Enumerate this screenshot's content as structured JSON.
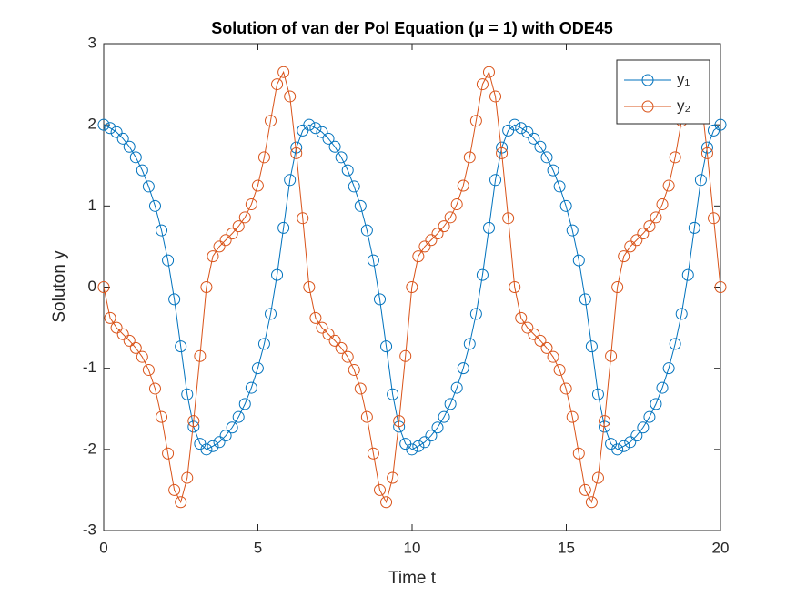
{
  "chart_data": {
    "type": "line",
    "title": "Solution of van der Pol Equation (μ = 1) with ODE45",
    "x_label": "Time t",
    "y_label": "Soluton y",
    "xlim": [
      0,
      20
    ],
    "xticks": [
      0,
      5,
      10,
      15,
      20
    ],
    "ylim": [
      -3,
      3
    ],
    "yticks": [
      -3,
      -2,
      -1,
      0,
      1,
      2,
      3
    ],
    "legend": "northeast",
    "x": [
      0,
      0.208,
      0.416,
      0.625,
      0.833,
      1.041,
      1.249,
      1.457,
      1.666,
      1.874,
      2.082,
      2.29,
      2.498,
      2.707,
      2.915,
      3.123,
      3.331,
      3.539,
      3.748,
      3.956,
      4.164,
      4.372,
      4.58,
      4.789,
      4.997,
      5.205,
      5.413,
      5.621,
      5.83,
      6.038,
      6.246,
      6.454,
      6.662,
      6.871,
      7.079,
      7.287,
      7.495,
      7.703,
      7.912,
      8.12,
      8.328,
      8.536,
      8.744,
      8.953,
      9.161,
      9.369,
      9.577,
      9.785,
      9.994,
      10.202,
      10.41,
      10.618,
      10.826,
      11.035,
      11.243,
      11.451,
      11.659,
      11.867,
      12.076,
      12.284,
      12.492,
      12.7,
      12.908,
      13.117,
      13.325,
      13.533,
      13.741,
      13.949,
      14.158,
      14.366,
      14.574,
      14.782,
      14.99,
      15.199,
      15.407,
      15.615,
      15.823,
      16.031,
      16.24,
      16.448,
      16.656,
      16.864,
      17.072,
      17.281,
      17.489,
      17.697,
      17.905,
      18.113,
      18.322,
      18.53,
      18.738,
      18.946,
      19.154,
      19.363,
      19.571,
      19.779,
      20
    ],
    "series": [
      {
        "name": "y₁",
        "color": "#0072BD",
        "values": [
          2,
          1.96,
          1.91,
          1.83,
          1.73,
          1.6,
          1.44,
          1.24,
          1,
          0.7,
          0.33,
          -0.15,
          -0.73,
          -1.32,
          -1.72,
          -1.93,
          -2,
          -1.96,
          -1.91,
          -1.83,
          -1.73,
          -1.6,
          -1.44,
          -1.24,
          -1,
          -0.7,
          -0.33,
          0.15,
          0.73,
          1.32,
          1.72,
          1.93,
          2,
          1.96,
          1.91,
          1.83,
          1.73,
          1.6,
          1.44,
          1.24,
          1,
          0.7,
          0.33,
          -0.15,
          -0.73,
          -1.32,
          -1.72,
          -1.93,
          -2,
          -1.96,
          -1.91,
          -1.83,
          -1.73,
          -1.6,
          -1.44,
          -1.24,
          -1,
          -0.7,
          -0.33,
          0.15,
          0.73,
          1.32,
          1.72,
          1.93,
          2,
          1.96,
          1.91,
          1.83,
          1.73,
          1.6,
          1.44,
          1.24,
          1,
          0.7,
          0.33,
          -0.15,
          -0.73,
          -1.32,
          -1.72,
          -1.93,
          -2,
          -1.96,
          -1.91,
          -1.83,
          -1.73,
          -1.6,
          -1.44,
          -1.24,
          -1,
          -0.7,
          -0.33,
          0.15,
          0.73,
          1.32,
          1.72,
          1.93,
          2
        ]
      },
      {
        "name": "y₂",
        "color": "#D95319",
        "values": [
          0,
          -0.38,
          -0.5,
          -0.58,
          -0.66,
          -0.75,
          -0.86,
          -1.02,
          -1.25,
          -1.6,
          -2.05,
          -2.5,
          -2.65,
          -2.35,
          -1.65,
          -0.85,
          0,
          0.38,
          0.5,
          0.58,
          0.66,
          0.75,
          0.86,
          1.02,
          1.25,
          1.6,
          2.05,
          2.5,
          2.65,
          2.35,
          1.65,
          0.85,
          0,
          -0.38,
          -0.5,
          -0.58,
          -0.66,
          -0.75,
          -0.86,
          -1.02,
          -1.25,
          -1.6,
          -2.05,
          -2.5,
          -2.65,
          -2.35,
          -1.65,
          -0.85,
          0,
          0.38,
          0.5,
          0.58,
          0.66,
          0.75,
          0.86,
          1.02,
          1.25,
          1.6,
          2.05,
          2.5,
          2.65,
          2.35,
          1.65,
          0.85,
          0,
          -0.38,
          -0.5,
          -0.58,
          -0.66,
          -0.75,
          -0.86,
          -1.02,
          -1.25,
          -1.6,
          -2.05,
          -2.5,
          -2.65,
          -2.35,
          -1.65,
          -0.85,
          0,
          0.38,
          0.5,
          0.58,
          0.66,
          0.75,
          0.86,
          1.02,
          1.25,
          1.6,
          2.05,
          2.5,
          2.65,
          2.35,
          1.65,
          0.85,
          0
        ]
      }
    ]
  }
}
